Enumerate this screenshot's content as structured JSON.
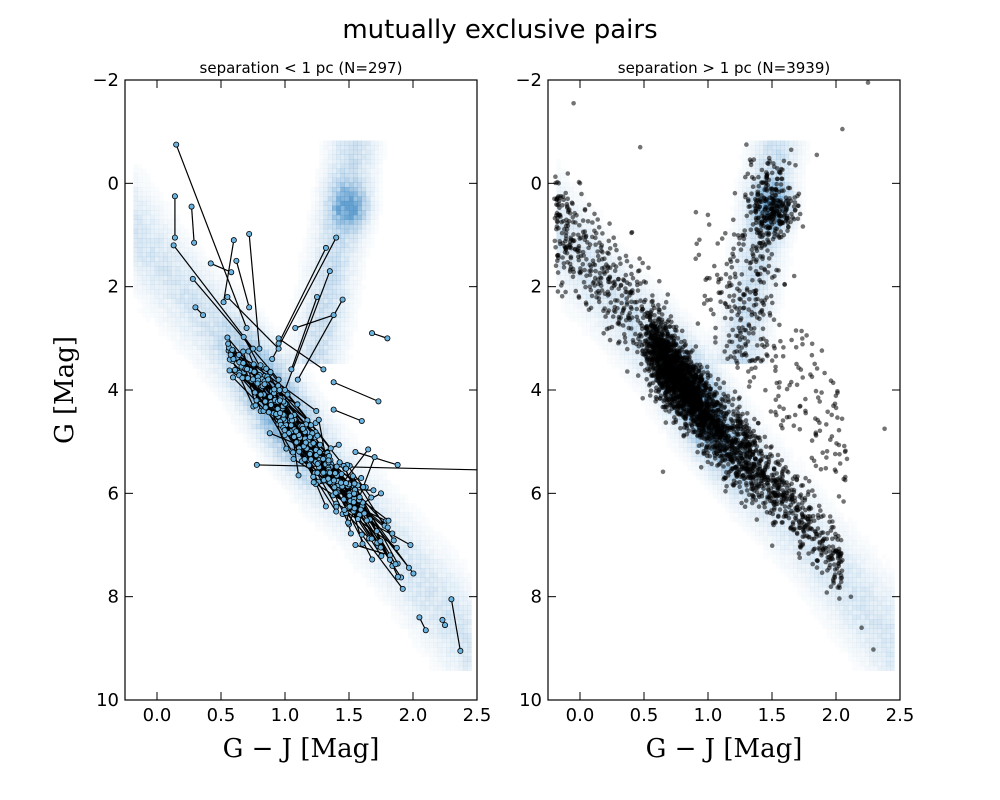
{
  "title": "mutually exclusive pairs",
  "colors": {
    "density": "#4a90c8",
    "pair_marker": "#6cb4e0",
    "pair_line": "#000000",
    "scatter": "#000000"
  },
  "chart_data": [
    {
      "type": "scatter",
      "title": "separation < 1 pc (N=297)",
      "xlabel": "G − J [Mag]",
      "ylabel": "G [Mag]",
      "xlim": [
        -0.25,
        2.5
      ],
      "ylim": [
        10,
        -2
      ],
      "y_inverted": true,
      "xticks": [
        "0.0",
        "0.5",
        "1.0",
        "1.5",
        "2.0",
        "2.5"
      ],
      "yticks": [
        "−2",
        "0",
        "2",
        "4",
        "6",
        "8",
        "10"
      ],
      "grid": false,
      "background": "2D histogram of full sample (blue density)",
      "pairs_note": "connected pairs: each pair of stars plotted as points joined by a line",
      "pairs": [
        [
          [
            0.15,
            -0.75
          ],
          [
            0.7,
            2.8
          ]
        ],
        [
          [
            0.14,
            0.25
          ],
          [
            0.14,
            1.05
          ]
        ],
        [
          [
            0.27,
            0.45
          ],
          [
            0.29,
            1.15
          ]
        ],
        [
          [
            0.13,
            1.2
          ],
          [
            0.75,
            3.2
          ]
        ],
        [
          [
            0.42,
            1.55
          ],
          [
            0.58,
            1.72
          ]
        ],
        [
          [
            0.6,
            1.1
          ],
          [
            0.52,
            2.3
          ]
        ],
        [
          [
            0.62,
            1.5
          ],
          [
            0.72,
            2.4
          ]
        ],
        [
          [
            0.72,
            0.98
          ],
          [
            0.8,
            3.2
          ]
        ],
        [
          [
            0.3,
            2.4
          ],
          [
            0.36,
            2.55
          ]
        ],
        [
          [
            0.28,
            1.85
          ],
          [
            0.95,
            3.8
          ]
        ],
        [
          [
            0.55,
            2.2
          ],
          [
            0.95,
            3.2
          ]
        ],
        [
          [
            1.4,
            1.05
          ],
          [
            0.9,
            3.4
          ]
        ],
        [
          [
            1.32,
            1.25
          ],
          [
            0.95,
            3.1
          ]
        ],
        [
          [
            1.35,
            1.7
          ],
          [
            1.0,
            4.0
          ]
        ],
        [
          [
            1.25,
            2.2
          ],
          [
            1.05,
            3.6
          ]
        ],
        [
          [
            1.45,
            2.25
          ],
          [
            1.1,
            3.8
          ]
        ],
        [
          [
            1.38,
            2.55
          ],
          [
            1.08,
            2.8
          ]
        ],
        [
          [
            1.3,
            3.6
          ],
          [
            0.95,
            3.0
          ]
        ],
        [
          [
            1.68,
            2.9
          ],
          [
            1.8,
            3.0
          ]
        ],
        [
          [
            1.38,
            3.85
          ],
          [
            1.73,
            4.22
          ]
        ],
        [
          [
            1.38,
            4.38
          ],
          [
            1.6,
            4.6
          ]
        ],
        [
          [
            0.78,
            5.45
          ],
          [
            2.6,
            5.55
          ]
        ],
        [
          [
            1.55,
            5.2
          ],
          [
            1.88,
            5.45
          ]
        ],
        [
          [
            1.65,
            5.15
          ],
          [
            1.42,
            5.9
          ]
        ],
        [
          [
            1.7,
            5.3
          ],
          [
            1.5,
            6.6
          ]
        ],
        [
          [
            1.75,
            6.0
          ],
          [
            1.45,
            6.4
          ]
        ],
        [
          [
            1.4,
            6.2
          ],
          [
            1.98,
            7.0
          ]
        ],
        [
          [
            1.6,
            6.8
          ],
          [
            1.92,
            7.85
          ]
        ],
        [
          [
            1.55,
            7.0
          ],
          [
            1.82,
            7.2
          ]
        ],
        [
          [
            2.05,
            8.4
          ],
          [
            2.1,
            8.65
          ]
        ],
        [
          [
            2.23,
            8.45
          ],
          [
            2.25,
            8.55
          ]
        ],
        [
          [
            2.3,
            8.05
          ],
          [
            2.37,
            9.05
          ]
        ],
        [
          [
            0.95,
            4.5
          ],
          [
            1.2,
            5.2
          ]
        ],
        [
          [
            1.05,
            4.8
          ],
          [
            1.3,
            5.6
          ]
        ],
        [
          [
            1.1,
            5.0
          ],
          [
            1.4,
            6.0
          ]
        ]
      ]
    },
    {
      "type": "scatter",
      "title": "separation > 1 pc (N=3939)",
      "xlabel": "G − J [Mag]",
      "xlim": [
        -0.25,
        2.5
      ],
      "ylim": [
        10,
        -2
      ],
      "y_inverted": true,
      "xticks": [
        "0.0",
        "0.5",
        "1.0",
        "1.5",
        "2.0",
        "2.5"
      ],
      "yticks": [
        "−2",
        "0",
        "2",
        "4",
        "6",
        "8",
        "10"
      ],
      "grid": false,
      "background": "2D histogram of full sample (blue density)",
      "points_note": "semi-transparent black points; main sequence plus red-clump / giant branch",
      "outlier_points": [
        [
          -0.05,
          -1.55
        ],
        [
          2.25,
          -1.95
        ],
        [
          2.05,
          -1.05
        ],
        [
          1.3,
          -0.75
        ],
        [
          1.65,
          -0.65
        ],
        [
          1.85,
          -0.55
        ],
        [
          0.47,
          -0.7
        ],
        [
          -0.15,
          0.25
        ],
        [
          2.38,
          4.75
        ],
        [
          2.2,
          8.6
        ],
        [
          1.8,
          3.7
        ],
        [
          1.95,
          6.55
        ],
        [
          0.0,
          0.0
        ],
        [
          0.15,
          0.85
        ],
        [
          -0.2,
          0.3
        ]
      ]
    }
  ]
}
